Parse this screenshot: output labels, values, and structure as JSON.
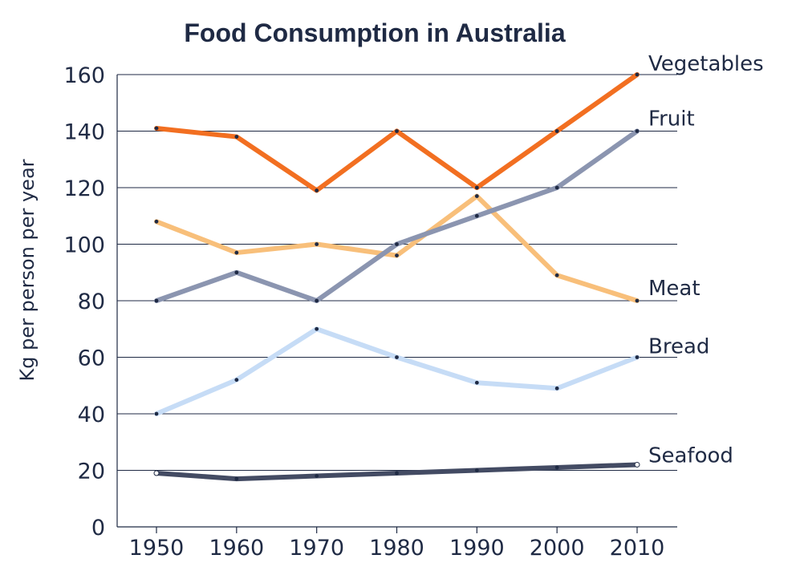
{
  "chart_data": {
    "type": "line",
    "title": "Food Consumption in Australia",
    "xlabel": "",
    "ylabel": "Kg per person per year",
    "x": [
      1950,
      1960,
      1970,
      1980,
      1990,
      2000,
      2010
    ],
    "ylim": [
      0,
      160
    ],
    "yticks": [
      0,
      20,
      40,
      60,
      80,
      100,
      120,
      140,
      160
    ],
    "grid": true,
    "legend": "labels at line ends (right)",
    "series": [
      {
        "name": "Vegetables",
        "color": "#f26f21",
        "values": [
          141,
          138,
          119,
          140,
          120,
          140,
          160
        ]
      },
      {
        "name": "Fruit",
        "color": "#8b95b0",
        "values": [
          80,
          90,
          80,
          100,
          110,
          120,
          140
        ]
      },
      {
        "name": "Meat",
        "color": "#f8bf7a",
        "values": [
          108,
          97,
          100,
          96,
          117,
          89,
          80
        ]
      },
      {
        "name": "Bread",
        "color": "#c6dcf6",
        "values": [
          40,
          52,
          70,
          60,
          51,
          49,
          60
        ]
      },
      {
        "name": "Seafood",
        "color": "#434b63",
        "values": [
          19,
          17,
          18,
          19,
          20,
          21,
          22
        ]
      }
    ]
  }
}
